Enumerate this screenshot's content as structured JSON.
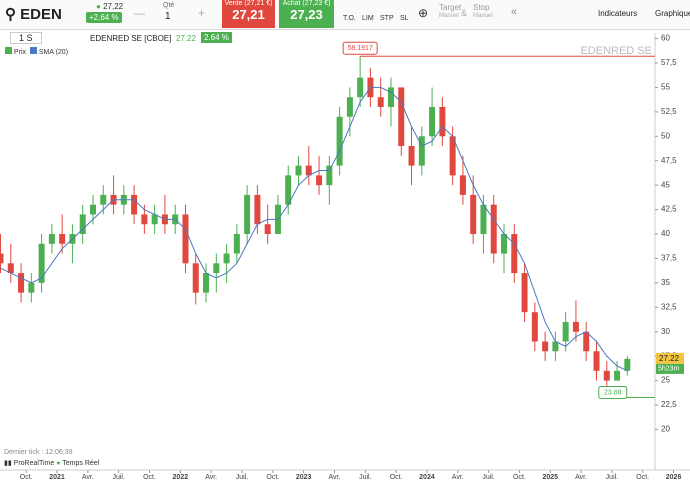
{
  "toolbar": {
    "symbol": "EDEN",
    "last": "27,22",
    "change": "+2,64 %",
    "qty_label": "Qté",
    "qty": "1",
    "sell_label": "Vente (27,21 €)",
    "sell": "27,21",
    "buy_label": "Achat (27,23 €)",
    "buy": "27,23",
    "order_types": [
      "T.O.",
      "LIM",
      "STP",
      "SL"
    ],
    "target": "Target",
    "target_sub": "Manuel",
    "amp": "&",
    "stop": "Stop",
    "stop_sub": "Manuel",
    "indicators": "Indicateurs",
    "chart": "Graphique"
  },
  "subbar": {
    "period": "1 S",
    "instrument": "EDENRED SE [CBOE]",
    "price": "27.22",
    "change": "2.64 %"
  },
  "footer": {
    "last_tick": "Dernier tick : 12:06:39",
    "brand": "ProRealTime",
    "feed": "Temps Réel"
  },
  "chart_data": {
    "type": "candlestick",
    "title": "EDENRED SE",
    "series": [
      {
        "name": "Prix",
        "color": "#4caf50",
        "down_color": "#e0483e",
        "open": [
          38,
          37,
          36,
          34,
          35,
          39,
          40,
          39,
          40,
          42,
          43,
          44,
          43,
          44,
          42,
          41,
          42,
          41,
          42,
          37,
          34,
          36,
          37,
          38,
          40,
          44,
          41,
          40,
          43,
          46,
          47,
          46,
          45,
          47,
          52,
          54,
          56,
          54,
          53,
          55,
          49,
          47,
          50,
          53,
          50,
          46,
          44,
          40,
          43,
          38,
          40,
          36,
          32,
          29,
          28,
          29,
          31,
          30,
          28,
          26,
          25,
          26
        ],
        "high": [
          40,
          39,
          37,
          36,
          40,
          41,
          42,
          41,
          43,
          44,
          45,
          46,
          45,
          45,
          43,
          43,
          44,
          43,
          43,
          38,
          37,
          38,
          39,
          41,
          45,
          45,
          43,
          44,
          47,
          48,
          49,
          48,
          48,
          53,
          55,
          58.1917,
          57,
          56,
          56,
          55,
          51,
          51,
          55,
          54,
          51,
          48,
          46,
          44,
          44,
          41,
          41,
          37,
          33,
          30,
          30,
          32,
          33.2,
          31,
          29,
          27,
          27,
          27.5
        ],
        "low": [
          36,
          35,
          33,
          33,
          34,
          38,
          38,
          37,
          39,
          41,
          42,
          42,
          42,
          41,
          40,
          40,
          40,
          40,
          36,
          32.8,
          33,
          34,
          35,
          37,
          39,
          40,
          39,
          40,
          42,
          45,
          45,
          44,
          43,
          46,
          50,
          53,
          53,
          52,
          51,
          48,
          45,
          46,
          49,
          49,
          45,
          43,
          39,
          38,
          37,
          36,
          35,
          31,
          28,
          27,
          27,
          28,
          29,
          27,
          25,
          23.88,
          25,
          25.5
        ],
        "close": [
          37,
          36,
          34,
          35,
          39,
          40,
          39,
          40,
          42,
          43,
          44,
          43,
          44,
          42,
          41,
          42,
          41,
          42,
          37,
          34,
          36,
          37,
          38,
          40,
          44,
          41,
          40,
          43,
          46,
          47,
          46,
          45,
          47,
          52,
          54,
          56,
          54,
          53,
          55,
          49,
          47,
          50,
          53,
          50,
          46,
          44,
          40,
          43,
          38,
          40,
          36,
          32,
          29,
          28,
          29,
          31,
          30,
          28,
          26,
          25,
          26,
          27.22
        ]
      },
      {
        "name": "SMA (20)",
        "color": "#4a78c2",
        "values": [
          36.5,
          36,
          35.5,
          35,
          35.5,
          37,
          38.5,
          39.5,
          40.5,
          41.5,
          42.5,
          43.5,
          43.5,
          43.5,
          42.5,
          42,
          41.5,
          41.5,
          40.5,
          38,
          36,
          35.5,
          36,
          37,
          39,
          41,
          41.5,
          41.5,
          43,
          45,
          46,
          46.5,
          46.5,
          48.5,
          51,
          53.5,
          55,
          55,
          54.5,
          53.5,
          51,
          49,
          49.5,
          51,
          50,
          47.5,
          45,
          43,
          41.5,
          40,
          39,
          37,
          34,
          31,
          29,
          28.5,
          29.5,
          30,
          29,
          27.5,
          26.5,
          26
        ]
      }
    ],
    "countdown": "5h23m",
    "ylim": [
      15.85,
      60.57
    ],
    "yticks": [
      {
        "value": 20,
        "label": "20"
      },
      {
        "value": 22.5,
        "label": "22,5"
      },
      25,
      {
        "value": 27.5,
        "label": "27,5"
      },
      30,
      {
        "value": 32.5,
        "label": "32,5"
      },
      35,
      {
        "value": 37.5,
        "label": "37,5"
      },
      40,
      {
        "value": 42.5,
        "label": "42,5"
      },
      45,
      {
        "value": 47.5,
        "label": "47,5"
      },
      50,
      {
        "value": 52.5,
        "label": "52,5"
      },
      55,
      {
        "value": 57.5,
        "label": "57,5"
      },
      60
    ],
    "xlim": [
      0.45,
      67.6
    ],
    "xticks": [
      {
        "value": 3,
        "label": "Oct."
      },
      {
        "value": 6,
        "label": "2021"
      },
      {
        "value": 9,
        "label": "Avr."
      },
      {
        "value": 12,
        "label": "Juil."
      },
      {
        "value": 15,
        "label": "Oct."
      },
      {
        "value": 18,
        "label": "2022"
      },
      {
        "value": 21,
        "label": "Avr."
      },
      {
        "value": 24,
        "label": "Juil."
      },
      {
        "value": 27,
        "label": "Oct."
      },
      {
        "value": 30,
        "label": "2023"
      },
      {
        "value": 33,
        "label": "Avr."
      },
      {
        "value": 36,
        "label": "Juil."
      },
      {
        "value": 39,
        "label": "Oct."
      },
      {
        "value": 42,
        "label": "2024"
      },
      {
        "value": 45,
        "label": "Avr."
      },
      {
        "value": 48,
        "label": "Juil."
      },
      {
        "value": 51,
        "label": "Oct."
      },
      {
        "value": 54,
        "label": "2025"
      },
      {
        "value": 57,
        "label": "Avr."
      },
      {
        "value": 60,
        "label": "Juil."
      },
      {
        "value": 63,
        "label": "Oct."
      },
      {
        "value": 66,
        "label": "2026"
      }
    ]
  }
}
